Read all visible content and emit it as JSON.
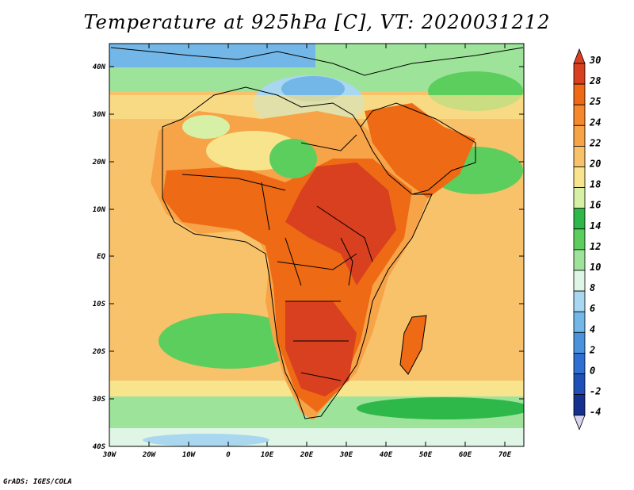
{
  "title": "Temperature at 925hPa [C], VT: 2020031212",
  "credit": "GrADS: IGES/COLA",
  "map": {
    "lat_labels": [
      "40N",
      "30N",
      "20N",
      "10N",
      "EQ",
      "10S",
      "20S",
      "30S",
      "40S"
    ],
    "lon_labels": [
      "30W",
      "20W",
      "10W",
      "0",
      "10E",
      "20E",
      "30E",
      "40E",
      "50E",
      "60E",
      "70E"
    ],
    "lon_range": [
      -30,
      75
    ],
    "lat_range": [
      -40,
      45
    ]
  },
  "colorbar": {
    "labels": [
      "30",
      "28",
      "25",
      "24",
      "22",
      "20",
      "18",
      "16",
      "14",
      "12",
      "10",
      "8",
      "6",
      "4",
      "2",
      "0",
      "-2",
      "-4"
    ],
    "colors": [
      "#d8401f",
      "#ee6a14",
      "#f5872d",
      "#f7a347",
      "#f8c26b",
      "#f9e48e",
      "#d6f0a6",
      "#2fb84a",
      "#5cce5e",
      "#9ee39a",
      "#dff5e6",
      "#a8d7ef",
      "#72b7e8",
      "#4a93dc",
      "#2f6fd1",
      "#1f4fb8",
      "#16308f",
      "#d9d3f0"
    ]
  }
}
